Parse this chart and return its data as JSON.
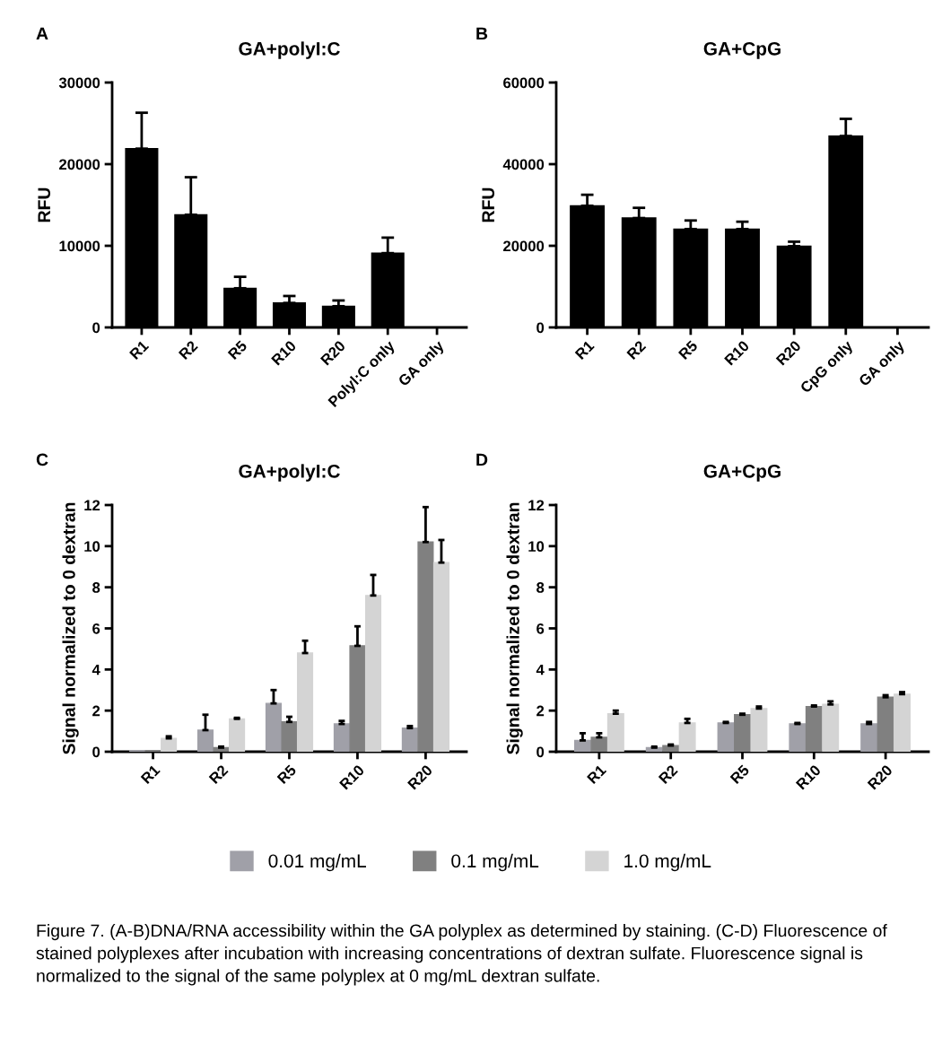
{
  "chart_data": [
    {
      "type": "bar",
      "title": "GA+polyI:C",
      "ylabel": "RFU",
      "annotations": [
        "A"
      ],
      "categories": [
        "R1",
        "R2",
        "R5",
        "R10",
        "R20",
        "Polyl:C only",
        "GA only"
      ],
      "series": [
        {
          "color": "#000000",
          "values": [
            21900,
            13800,
            4800,
            3000,
            2600,
            9100,
            0
          ],
          "errors": [
            [
              21900,
              26300
            ],
            [
              13800,
              18400
            ],
            [
              4800,
              6200
            ],
            [
              3000,
              3850
            ],
            [
              2600,
              3300
            ],
            [
              9100,
              11000
            ],
            null
          ]
        }
      ],
      "ylim": [
        0,
        30000
      ],
      "yticks": [
        0,
        10000,
        20000,
        30000
      ],
      "grid": false,
      "legend": false
    },
    {
      "type": "bar",
      "title": "GA+CpG",
      "ylabel": "RFU",
      "annotations": [
        "B"
      ],
      "categories": [
        "R1",
        "R2",
        "R5",
        "R10",
        "R20",
        "CpG only",
        "GA only"
      ],
      "series": [
        {
          "color": "#000000",
          "values": [
            29800,
            26800,
            24100,
            24100,
            19900,
            46900,
            0
          ],
          "errors": [
            [
              29800,
              32500
            ],
            [
              26800,
              29300
            ],
            [
              24100,
              26200
            ],
            [
              24100,
              25900
            ],
            [
              19900,
              21000
            ],
            [
              46900,
              51100
            ],
            null
          ]
        }
      ],
      "ylim": [
        0,
        60000
      ],
      "yticks": [
        0,
        20000,
        40000,
        60000
      ],
      "grid": false,
      "legend": false
    },
    {
      "type": "bar",
      "title": "GA+polyI:C",
      "ylabel": "Signal normalized to 0 dextran",
      "annotations": [
        "C"
      ],
      "categories": [
        "R1",
        "R2",
        "R5",
        "R10",
        "R20"
      ],
      "series": [
        {
          "name": "0.01 mg/mL",
          "color": "#a0a0a8",
          "values": [
            0.05,
            1.05,
            2.35,
            1.35,
            1.15
          ],
          "errors": [
            null,
            [
              1.05,
              1.8
            ],
            [
              2.35,
              3.0
            ],
            [
              1.35,
              1.5
            ],
            [
              1.15,
              1.25
            ]
          ]
        },
        {
          "name": "0.1 mg/mL",
          "color": "#808080",
          "values": [
            0.05,
            0.2,
            1.45,
            5.15,
            10.2
          ],
          "errors": [
            null,
            [
              0.2,
              0.25
            ],
            [
              1.45,
              1.7
            ],
            [
              5.15,
              6.1
            ],
            [
              10.2,
              11.9
            ]
          ]
        },
        {
          "name": "1.0 mg/mL",
          "color": "#d4d4d4",
          "values": [
            0.65,
            1.6,
            4.8,
            7.6,
            9.2
          ],
          "errors": [
            [
              0.65,
              0.75
            ],
            [
              1.6,
              1.65
            ],
            [
              4.8,
              5.4
            ],
            [
              7.6,
              8.6
            ],
            [
              9.2,
              10.3
            ]
          ]
        }
      ],
      "ylim": [
        0,
        12
      ],
      "yticks": [
        0,
        2,
        4,
        6,
        8,
        10,
        12
      ],
      "grid": false,
      "legend": "bottom"
    },
    {
      "type": "bar",
      "title": "GA+CpG",
      "ylabel": "Signal normalized to 0 dextran",
      "annotations": [
        "D",
        "Figure 7. (A-B)DNA/RNA accessibility within the GA polyplex as determined by staining. (C-D) Fluorescence of stained polyplexes after incubation with increasing concentrations of dextran sulfate. Fluorescence signal is normalized to the signal of the same polyplex at 0 mg/mL dextran sulfate."
      ],
      "categories": [
        "R1",
        "R2",
        "R5",
        "R10",
        "R20"
      ],
      "series": [
        {
          "color": "#a0a0a8",
          "values": [
            0.55,
            0.2,
            1.4,
            1.35,
            1.35
          ],
          "errors": [
            [
              0.55,
              0.9
            ],
            [
              0.2,
              0.25
            ],
            [
              1.4,
              1.45
            ],
            [
              1.35,
              1.4
            ],
            [
              1.35,
              1.45
            ]
          ]
        },
        {
          "color": "#808080",
          "values": [
            0.7,
            0.3,
            1.8,
            2.2,
            2.65
          ],
          "errors": [
            [
              0.7,
              0.9
            ],
            [
              0.3,
              0.35
            ],
            [
              1.8,
              1.85
            ],
            [
              2.2,
              2.25
            ],
            [
              2.65,
              2.75
            ]
          ]
        },
        {
          "color": "#d4d4d4",
          "values": [
            1.85,
            1.4,
            2.1,
            2.3,
            2.8
          ],
          "errors": [
            [
              1.85,
              2.0
            ],
            [
              1.4,
              1.6
            ],
            [
              2.1,
              2.2
            ],
            [
              2.3,
              2.45
            ],
            [
              2.8,
              2.9
            ]
          ]
        }
      ],
      "ylim": [
        0,
        12
      ],
      "yticks": [
        0,
        2,
        4,
        6,
        8,
        10,
        12
      ],
      "grid": false,
      "legend": false
    }
  ]
}
